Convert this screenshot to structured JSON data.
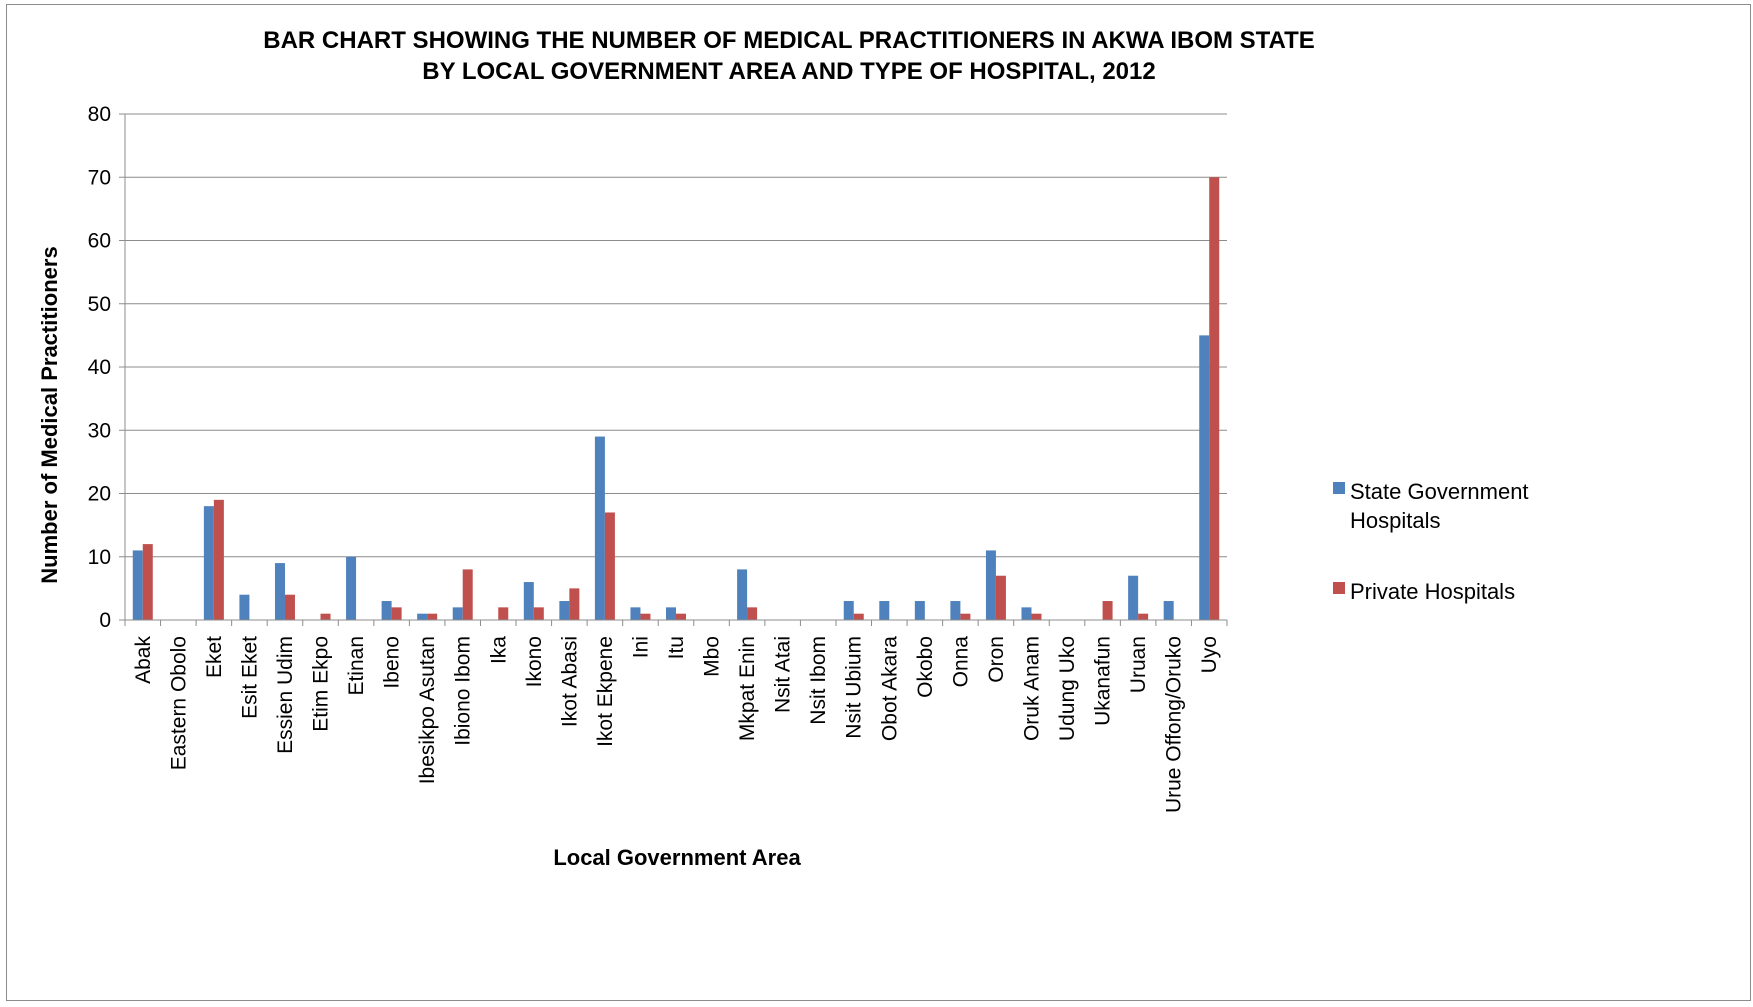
{
  "chart_data": {
    "type": "bar",
    "title": [
      "BAR CHART SHOWING THE NUMBER OF MEDICAL PRACTITIONERS IN AKWA IBOM STATE",
      "BY LOCAL GOVERNMENT AREA AND TYPE OF HOSPITAL, 2012"
    ],
    "xlabel": "Local Government Area",
    "ylabel": "Number of Medical Practitioners",
    "ylim": [
      0,
      80
    ],
    "yticks": [
      0,
      10,
      20,
      30,
      40,
      50,
      60,
      70,
      80
    ],
    "grid": true,
    "legend_position": "right",
    "categories": [
      "Abak",
      "Eastern Obolo",
      "Eket",
      "Esit Eket",
      "Essien Udim",
      "Etim Ekpo",
      "Etinan",
      "Ibeno",
      "Ibesikpo Asutan",
      "Ibiono Ibom",
      "Ika",
      "Ikono",
      "Ikot Abasi",
      "Ikot Ekpene",
      "Ini",
      "Itu",
      "Mbo",
      "Mkpat Enin",
      "Nsit Atai",
      "Nsit Ibom",
      "Nsit Ubium",
      "Obot Akara",
      "Okobo",
      "Onna",
      "Oron",
      "Oruk Anam",
      "Udung Uko",
      "Ukanafun",
      "Uruan",
      "Urue Offong/Oruko",
      "Uyo"
    ],
    "series": [
      {
        "name": [
          "State Government",
          "Hospitals"
        ],
        "color": "#4f81bd",
        "values": [
          11,
          0,
          18,
          4,
          9,
          0,
          10,
          3,
          1,
          2,
          0,
          6,
          3,
          29,
          2,
          2,
          0,
          8,
          0,
          0,
          3,
          3,
          3,
          3,
          11,
          2,
          0,
          0,
          7,
          3,
          45
        ]
      },
      {
        "name": [
          "Private Hospitals"
        ],
        "color": "#c0504d",
        "values": [
          12,
          0,
          19,
          0,
          4,
          1,
          0,
          2,
          1,
          8,
          2,
          2,
          5,
          17,
          1,
          1,
          0,
          2,
          0,
          0,
          1,
          0,
          0,
          1,
          7,
          1,
          0,
          3,
          1,
          0,
          70
        ]
      }
    ]
  }
}
